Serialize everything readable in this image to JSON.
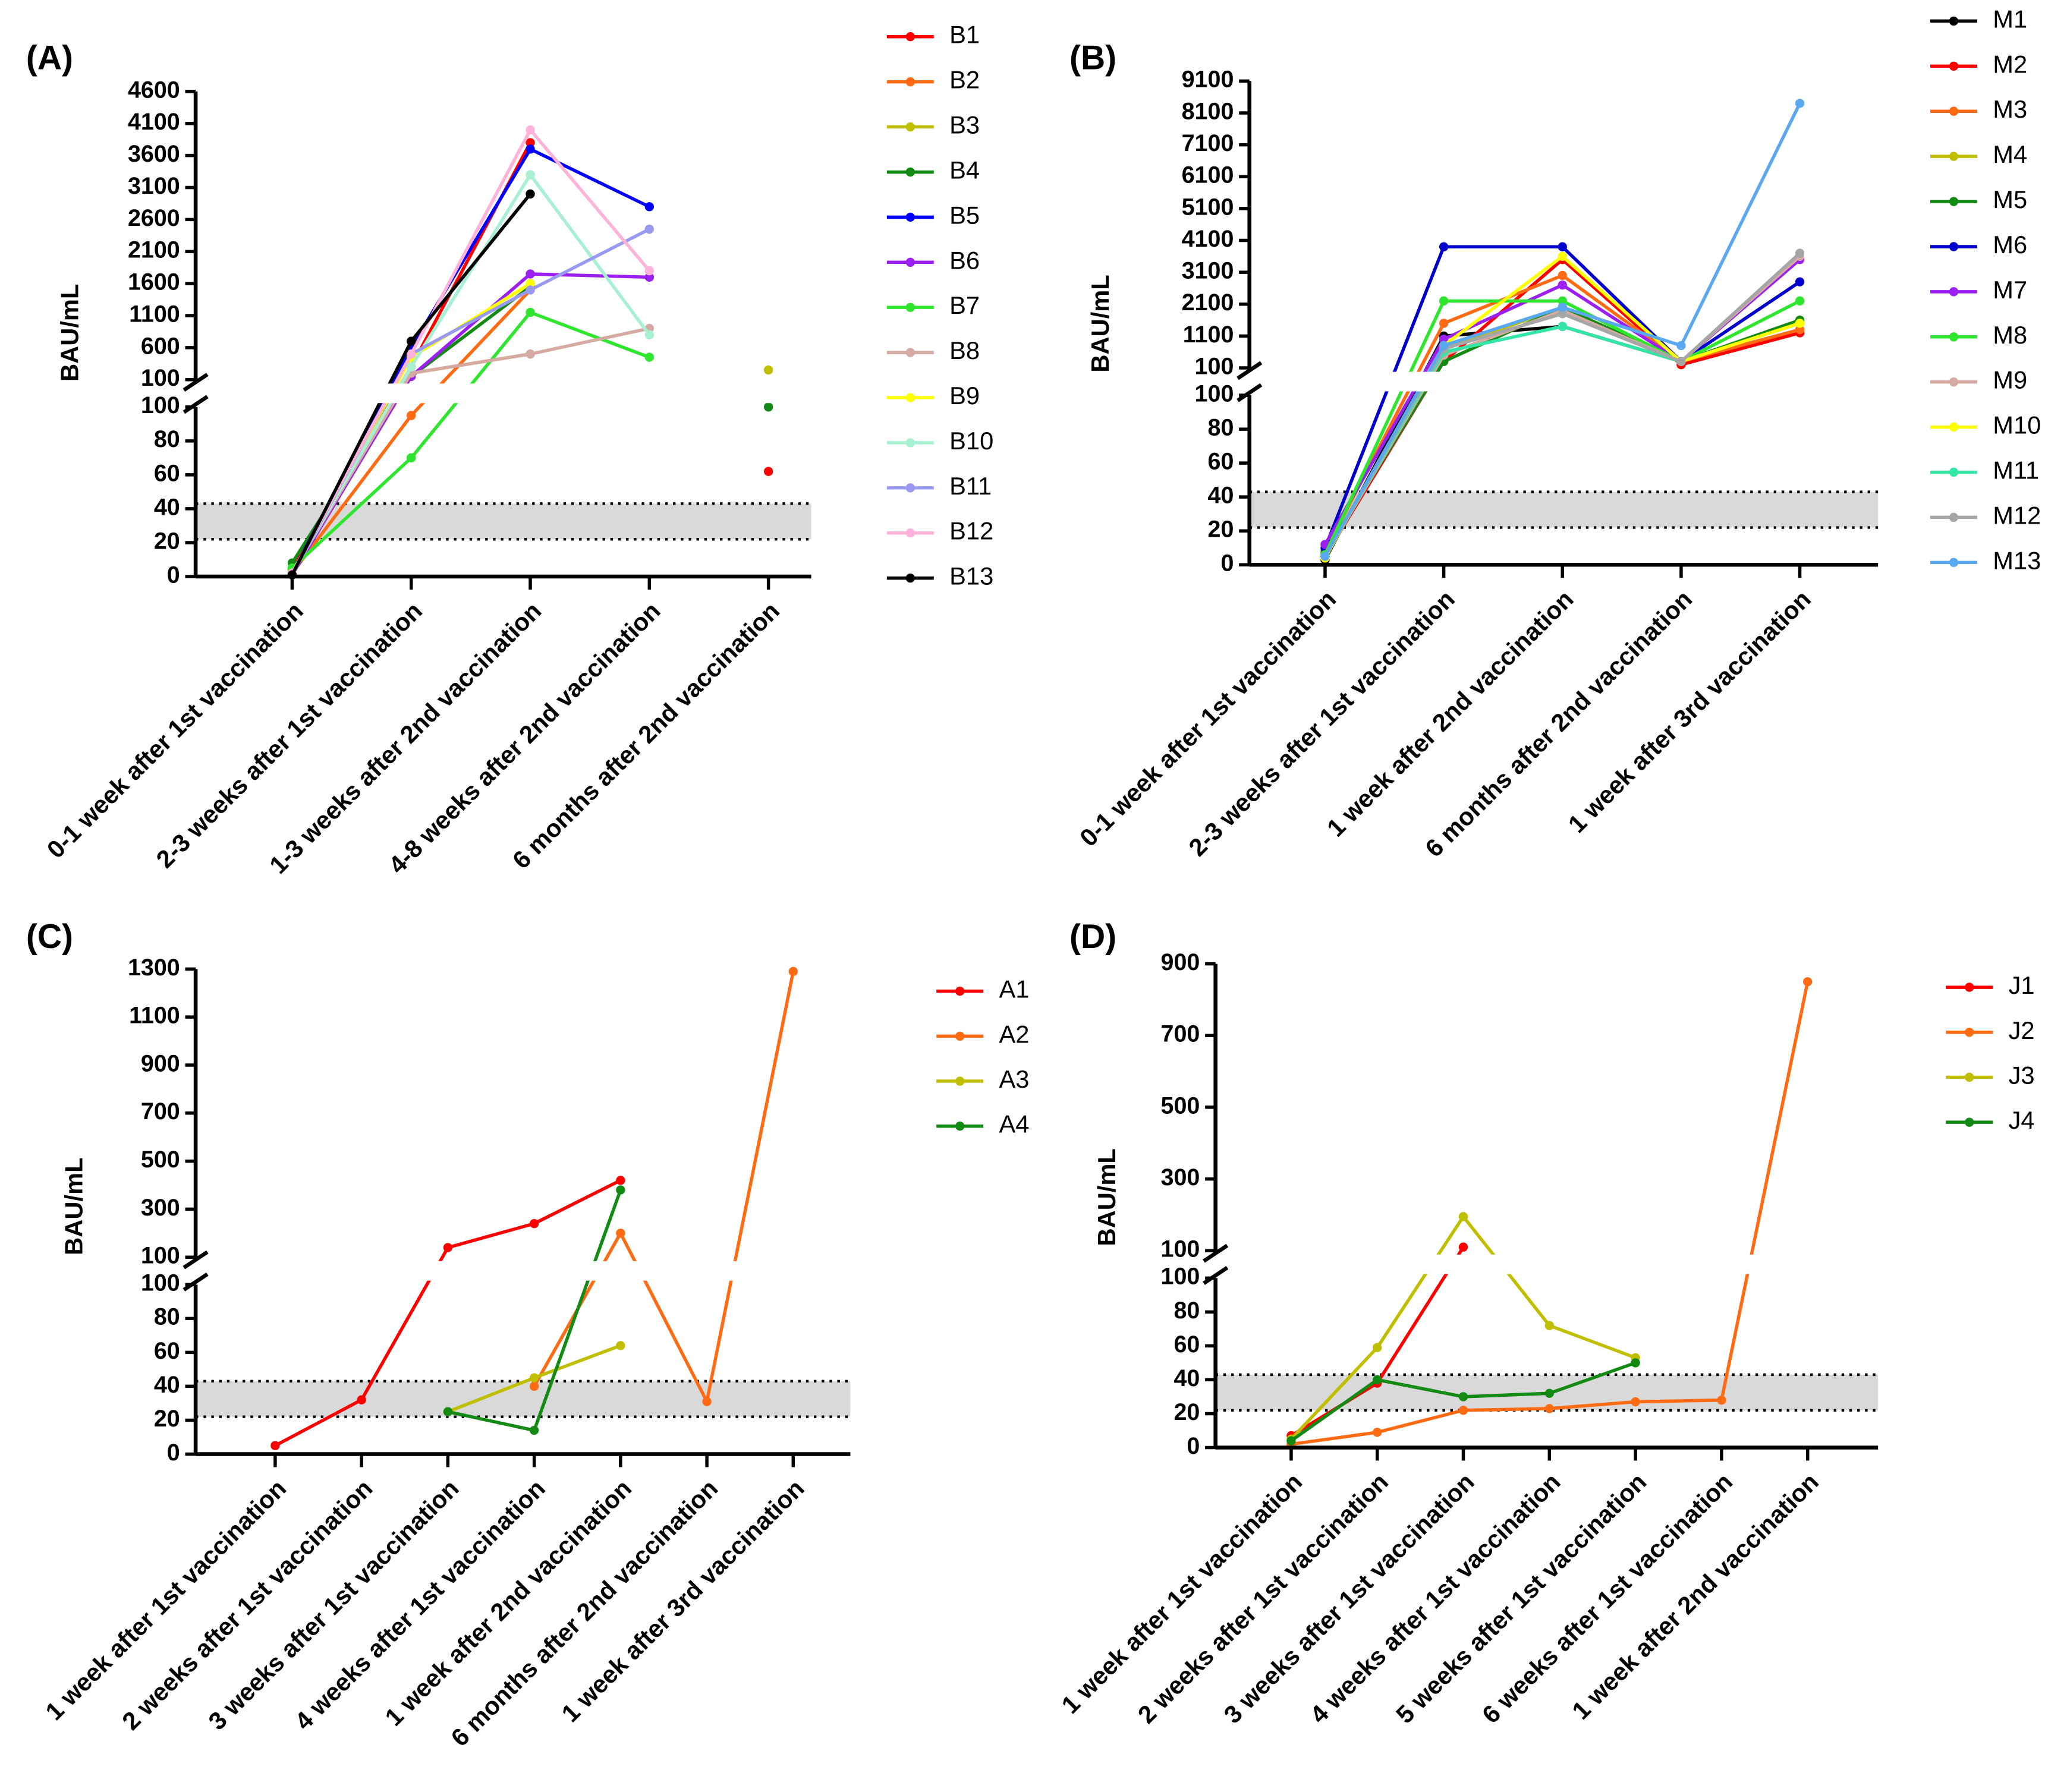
{
  "chart_data": [
    {
      "type": "line",
      "title": "(A)",
      "y_label": "BAU/mL",
      "categories": [
        "0-1 week after 1st vaccination",
        "2-3 weeks after 1st vaccination",
        "1-3 weeks after 2nd vaccination",
        "4-8 weeks after 2nd vaccination",
        "6 months after 2nd vaccination"
      ],
      "axis_break": true,
      "ylim_lower": [
        0,
        100
      ],
      "yticks_lower": [
        0,
        20,
        40,
        60,
        80,
        100
      ],
      "ylim_upper": [
        100,
        4600
      ],
      "yticks_upper": [
        100,
        600,
        1100,
        1600,
        2100,
        2600,
        3100,
        3600,
        4100,
        4600
      ],
      "reference_band": [
        22,
        43
      ],
      "series": [
        {
          "name": "B1",
          "color": "#ff0000",
          "values": [
            4,
            300,
            3800,
            null,
            62
          ]
        },
        {
          "name": "B2",
          "color": "#ff6a13",
          "values": [
            2,
            95,
            1500,
            null,
            null
          ]
        },
        {
          "name": "B3",
          "color": "#bfbf00",
          "values": [
            3,
            200,
            500,
            null,
            250
          ]
        },
        {
          "name": "B4",
          "color": "#138a13",
          "values": [
            8,
            150,
            1550,
            null,
            100
          ]
        },
        {
          "name": "B5",
          "color": "#0000ff",
          "values": [
            2,
            600,
            3700,
            2800,
            null
          ]
        },
        {
          "name": "B6",
          "color": "#9b1ff0",
          "values": [
            1,
            150,
            1750,
            1700,
            null
          ]
        },
        {
          "name": "B7",
          "color": "#2ee62e",
          "values": [
            5,
            70,
            1150,
            450,
            null
          ]
        },
        {
          "name": "B8",
          "color": "#d4aaa3",
          "values": [
            2,
            200,
            500,
            900,
            null
          ]
        },
        {
          "name": "B9",
          "color": "#ffff00",
          "values": [
            2,
            450,
            1600,
            null,
            null
          ]
        },
        {
          "name": "B10",
          "color": "#a8f0d2",
          "values": [
            2,
            300,
            3300,
            800,
            null
          ]
        },
        {
          "name": "B11",
          "color": "#9999f0",
          "values": [
            1,
            500,
            1500,
            2450,
            null
          ]
        },
        {
          "name": "B12",
          "color": "#ffb3d9",
          "values": [
            2,
            500,
            4000,
            1800,
            null
          ]
        },
        {
          "name": "B13",
          "color": "#000000",
          "values": [
            1,
            700,
            3000,
            null,
            null
          ]
        }
      ]
    },
    {
      "type": "line",
      "title": "(B)",
      "y_label": "BAU/mL",
      "categories": [
        "0-1 week after 1st vaccination",
        "2-3 weeks after 1st vaccination",
        "1 week after 2nd vaccination",
        "6 months after 2nd vaccination",
        "1 week after 3rd vaccination"
      ],
      "axis_break": true,
      "ylim_lower": [
        0,
        100
      ],
      "yticks_lower": [
        0,
        20,
        40,
        60,
        80,
        100
      ],
      "ylim_upper": [
        100,
        9100
      ],
      "yticks_upper": [
        100,
        1100,
        2100,
        3100,
        4100,
        5100,
        6100,
        7100,
        8100,
        9100
      ],
      "reference_band": [
        22,
        43
      ],
      "series": [
        {
          "name": "M1",
          "color": "#000000",
          "values": [
            3,
            1100,
            1400,
            300,
            1300
          ]
        },
        {
          "name": "M2",
          "color": "#ff0000",
          "values": [
            5,
            300,
            3500,
            200,
            1200
          ]
        },
        {
          "name": "M3",
          "color": "#ff6a13",
          "values": [
            8,
            1500,
            3000,
            300,
            1300
          ]
        },
        {
          "name": "M4",
          "color": "#bfbf00",
          "values": [
            6,
            700,
            2000,
            300,
            1500
          ]
        },
        {
          "name": "M5",
          "color": "#138a13",
          "values": [
            7,
            300,
            2000,
            300,
            1600
          ]
        },
        {
          "name": "M6",
          "color": "#0000cc",
          "values": [
            10,
            3900,
            3900,
            300,
            2800
          ]
        },
        {
          "name": "M7",
          "color": "#9b1ff0",
          "values": [
            12,
            1000,
            2700,
            300,
            3500
          ]
        },
        {
          "name": "M8",
          "color": "#2ee62e",
          "values": [
            6,
            2200,
            2200,
            300,
            2200
          ]
        },
        {
          "name": "M9",
          "color": "#d4aaa3",
          "values": [
            5,
            500,
            1900,
            300,
            3600
          ]
        },
        {
          "name": "M10",
          "color": "#ffff00",
          "values": [
            4,
            800,
            3600,
            300,
            1500
          ]
        },
        {
          "name": "M11",
          "color": "#33e6a6",
          "values": [
            5,
            600,
            1400,
            300,
            null
          ]
        },
        {
          "name": "M12",
          "color": "#a6a6a6",
          "values": [
            5,
            700,
            1800,
            300,
            3700
          ]
        },
        {
          "name": "M13",
          "color": "#5aa9f0",
          "values": [
            5,
            800,
            2000,
            800,
            8400
          ]
        }
      ]
    },
    {
      "type": "line",
      "title": "(C)",
      "y_label": "BAU/mL",
      "categories": [
        "1 week after 1st vaccination",
        "2 weeks after 1st vaccination",
        "3 weeks after 1st vaccination",
        "4 weeks after 1st vaccination",
        "1 week after 2nd vaccination",
        "6 months after 2nd vaccination",
        "1 week after 3rd vaccination"
      ],
      "axis_break": true,
      "ylim_lower": [
        0,
        100
      ],
      "yticks_lower": [
        0,
        20,
        40,
        60,
        80,
        100
      ],
      "ylim_upper": [
        100,
        1300
      ],
      "yticks_upper": [
        100,
        300,
        500,
        700,
        900,
        1100,
        1300
      ],
      "reference_band": [
        22,
        43
      ],
      "series": [
        {
          "name": "A1",
          "color": "#ff0000",
          "values": [
            5,
            32,
            140,
            240,
            420,
            null,
            null
          ]
        },
        {
          "name": "A2",
          "color": "#ff6a13",
          "values": [
            null,
            null,
            null,
            40,
            200,
            31,
            1290
          ]
        },
        {
          "name": "A3",
          "color": "#bfbf00",
          "values": [
            null,
            null,
            25,
            45,
            64,
            null,
            null
          ]
        },
        {
          "name": "A4",
          "color": "#138a13",
          "values": [
            null,
            null,
            25,
            14,
            380,
            null,
            null
          ]
        }
      ]
    },
    {
      "type": "line",
      "title": "(D)",
      "y_label": "BAU/mL",
      "categories": [
        "1 week after 1st vaccination",
        "2 weeks after 1st vaccination",
        "3 weeks after 1st vaccination",
        "4 weeks after 1st vaccination",
        "5 weeks after 1st vaccination",
        "6 weeks after 1st vaccination",
        "1 week after 2nd vaccination"
      ],
      "axis_break": true,
      "ylim_lower": [
        0,
        100
      ],
      "yticks_lower": [
        0,
        20,
        40,
        60,
        80,
        100
      ],
      "ylim_upper": [
        100,
        900
      ],
      "yticks_upper": [
        100,
        300,
        500,
        700,
        900
      ],
      "reference_band": [
        22,
        43
      ],
      "series": [
        {
          "name": "J1",
          "color": "#ff0000",
          "values": [
            7,
            38,
            110,
            null,
            null,
            null,
            null
          ]
        },
        {
          "name": "J2",
          "color": "#ff6a13",
          "values": [
            2,
            9,
            22,
            23,
            27,
            28,
            850
          ]
        },
        {
          "name": "J3",
          "color": "#bfbf00",
          "values": [
            5,
            59,
            195,
            72,
            53,
            null,
            null
          ]
        },
        {
          "name": "J4",
          "color": "#138a13",
          "values": [
            4,
            40,
            30,
            32,
            50,
            null,
            null
          ]
        }
      ]
    }
  ]
}
